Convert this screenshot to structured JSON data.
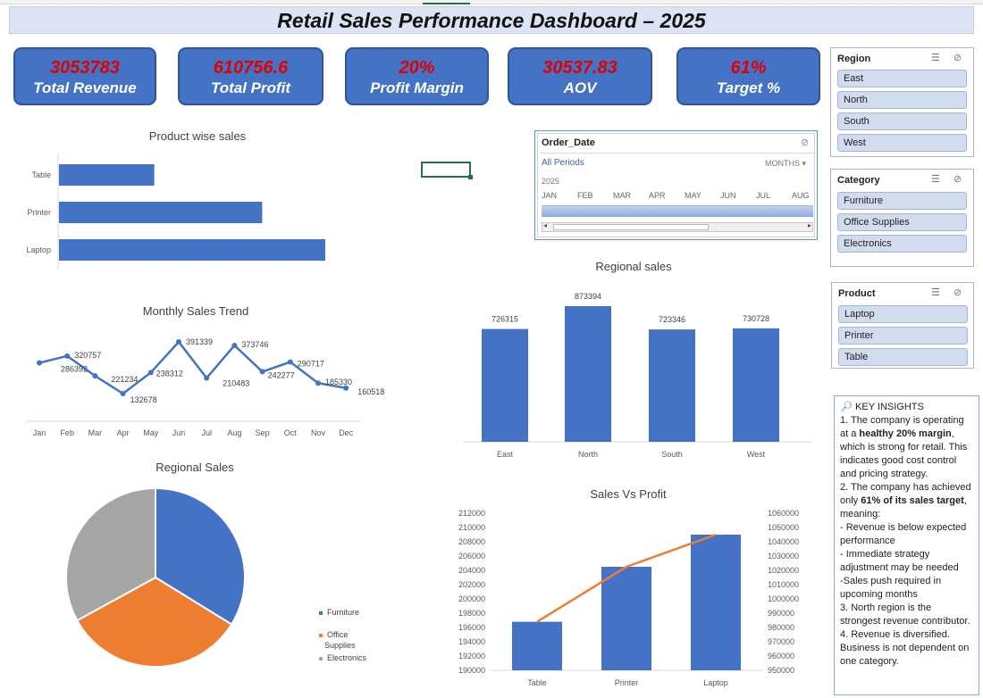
{
  "title": "Retail Sales Performance Dashboard – 2025",
  "kpis": [
    {
      "value": "3053783",
      "label": "Total Revenue"
    },
    {
      "value": "610756.6",
      "label": "Total Profit"
    },
    {
      "value": "20%",
      "label": "Profit Margin"
    },
    {
      "value": "30537.83",
      "label": "AOV"
    },
    {
      "value": "61%",
      "label": "Target  %"
    }
  ],
  "slicers": {
    "region": {
      "title": "Region",
      "items": [
        "East",
        "North",
        "South",
        "West"
      ]
    },
    "category": {
      "title": "Category",
      "items": [
        "Furniture",
        "Office Supplies",
        "Electronics"
      ]
    },
    "product": {
      "title": "Product",
      "items": [
        "Laptop",
        "Printer",
        "Table"
      ]
    }
  },
  "timeline": {
    "field": "Order_Date",
    "period_label": "All Periods",
    "unit_label": "MONTHS",
    "year": "2025",
    "months": [
      "JAN",
      "FEB",
      "MAR",
      "APR",
      "MAY",
      "JUN",
      "JUL",
      "AUG"
    ]
  },
  "insights": {
    "heading": "KEY INSIGHTS",
    "lines": [
      "1. The company is operating at a healthy 20% margin, which is strong for retail. This indicates good cost control and pricing strategy.",
      "2. The company has achieved only 61% of its sales target, meaning:",
      "- Revenue is below expected performance",
      "- Immediate strategy adjustment may be needed",
      "-Sales push required in upcoming months",
      "3. North region is the strongest revenue contributor.",
      "4. Revenue is diversified. Business is not dependent on one category."
    ]
  },
  "colors": {
    "accent": "#4472c4",
    "orange": "#ed7d31",
    "gray": "#a5a5a5",
    "kpi_value": "#e00000"
  },
  "chart_data": [
    {
      "type": "bar",
      "orientation": "horizontal",
      "title": "Product wise sales",
      "categories": [
        "Table",
        "Printer",
        "Laptop"
      ],
      "values": [
        196800,
        204500,
        209000
      ],
      "xlim": [
        190000,
        212000
      ]
    },
    {
      "type": "line",
      "title": "Monthly Sales Trend",
      "categories": [
        "Jan",
        "Feb",
        "Mar",
        "Apr",
        "May",
        "Jun",
        "Jul",
        "Aug",
        "Sep",
        "Oct",
        "Nov",
        "Dec"
      ],
      "values": [
        286392,
        320757,
        221234,
        132678,
        238312,
        391339,
        210483,
        373746,
        242277,
        290717,
        185330,
        160518
      ]
    },
    {
      "type": "bar",
      "title": "Regional sales",
      "categories": [
        "East",
        "North",
        "South",
        "West"
      ],
      "values": [
        726315,
        873394,
        723346,
        730728
      ],
      "ylim": [
        0,
        900000
      ]
    },
    {
      "type": "pie",
      "title": "Regional Sales",
      "categories": [
        "Furniture",
        "Office Supplies",
        "Electronics"
      ],
      "values": [
        33.8,
        33.2,
        33.0
      ],
      "colors": [
        "#4472c4",
        "#ed7d31",
        "#a5a5a5"
      ],
      "legend": "right"
    },
    {
      "type": "bar",
      "title": "Sales Vs Profit",
      "categories": [
        "Table",
        "Printer",
        "Laptop"
      ],
      "series": [
        {
          "values": [
            196800,
            204500,
            209000
          ]
        },
        {
          "values": [
            984000,
            1022500,
            1045000
          ]
        }
      ],
      "ylim": [
        190000,
        212000
      ],
      "y2lim": [
        950000,
        1060000
      ],
      "yticks": [
        "212000",
        "210000",
        "208000",
        "206000",
        "204000",
        "202000",
        "200000",
        "198000",
        "196000",
        "194000",
        "192000",
        "190000"
      ],
      "y2ticks": [
        "1060000",
        "1050000",
        "1040000",
        "1030000",
        "1020000",
        "1010000",
        "1000000",
        "990000",
        "980000",
        "970000",
        "960000",
        "950000"
      ]
    }
  ]
}
